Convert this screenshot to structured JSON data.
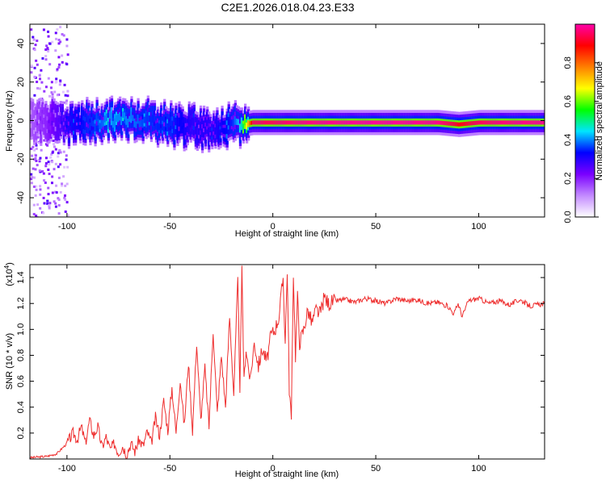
{
  "title": "C2E1.2026.018.04.23.E33",
  "chart_data": [
    {
      "type": "heatmap",
      "xlabel": "Height of straight line (km)",
      "ylabel": "Frequency (Hz)",
      "xlim": [
        -118,
        132
      ],
      "ylim": [
        -50,
        50
      ],
      "xticks": [
        -100,
        -50,
        0,
        50,
        100
      ],
      "xtick_labels": [
        "-100",
        "-50",
        "0",
        "50",
        "100"
      ],
      "yticks": [
        -40,
        -20,
        0,
        20,
        40
      ],
      "ytick_labels": [
        "-40",
        "-20",
        "0",
        "20",
        "40"
      ],
      "colorbar": {
        "label": "Normalized spectral amplitude",
        "range": [
          0,
          1
        ],
        "ticks": [
          0.0,
          0.2,
          0.4,
          0.6,
          0.8
        ],
        "tick_labels": [
          "0.0",
          "0.2",
          "0.4",
          "0.6",
          "0.8"
        ],
        "colors": [
          "#ffffff",
          "#c38aff",
          "#7a00ff",
          "#0000ff",
          "#00e5ff",
          "#00ff00",
          "#ffff00",
          "#ff7f00",
          "#ff0000",
          "#ff00aa"
        ]
      },
      "ridge": {
        "x": [
          -118,
          -110,
          -100,
          -90,
          -80,
          -70,
          -60,
          -50,
          -40,
          -30,
          -20,
          -15,
          -10,
          0,
          10,
          20,
          40,
          60,
          80,
          90,
          100,
          110,
          120,
          132
        ],
        "center_hz": [
          0,
          0,
          -2,
          -1,
          0,
          1,
          0,
          -2,
          -3,
          -4,
          -3,
          -2,
          -1,
          -1,
          -1,
          -1,
          -1,
          -1,
          -1,
          -2,
          -1,
          -1,
          -1,
          -1
        ],
        "amplitude": [
          0.15,
          0.2,
          0.3,
          0.35,
          0.4,
          0.4,
          0.35,
          0.35,
          0.3,
          0.3,
          0.35,
          0.5,
          0.95,
          0.95,
          0.97,
          0.98,
          0.99,
          0.99,
          0.98,
          0.9,
          0.95,
          0.97,
          0.98,
          0.98
        ]
      }
    },
    {
      "type": "line",
      "xlabel": "Height of straight line (km)",
      "ylabel": "SNR (10 * v/v)",
      "y_multiplier": "(x10",
      "y_multiplier_exp": "4",
      "xlim": [
        -118,
        132
      ],
      "ylim": [
        0,
        1.5
      ],
      "xticks": [
        -100,
        -50,
        0,
        50,
        100
      ],
      "xtick_labels": [
        "-100",
        "-50",
        "0",
        "50",
        "100"
      ],
      "yticks": [
        0.2,
        0.4,
        0.6,
        0.8,
        1.0,
        1.2,
        1.4
      ],
      "ytick_labels": [
        "0.2",
        "0.4",
        "0.6",
        "0.8",
        "1.0",
        "1.2",
        "1.4"
      ],
      "color": "#ee2e2e",
      "series": [
        {
          "x": [
            -118,
            -110,
            -105,
            -100,
            -97,
            -95,
            -93,
            -91,
            -89,
            -87,
            -85,
            -83,
            -81,
            -79,
            -77,
            -75,
            -73,
            -71,
            -69,
            -67,
            -65,
            -63,
            -61,
            -59,
            -57,
            -55,
            -53,
            -51,
            -49,
            -47,
            -45,
            -43,
            -41,
            -39,
            -37,
            -35,
            -33,
            -31,
            -29,
            -27,
            -25,
            -23,
            -21,
            -19,
            -17,
            -16,
            -15,
            -14,
            -13,
            -11,
            -9,
            -7,
            -5,
            -3,
            -1,
            1,
            3,
            5,
            6,
            7,
            8,
            9,
            10,
            11,
            12,
            13,
            15,
            17,
            19,
            21,
            23,
            25,
            27,
            30,
            35,
            40,
            45,
            50,
            55,
            60,
            65,
            70,
            75,
            80,
            85,
            88,
            90,
            92,
            95,
            100,
            105,
            110,
            115,
            120,
            125,
            132
          ],
          "y": [
            0.01,
            0.02,
            0.04,
            0.12,
            0.2,
            0.15,
            0.25,
            0.12,
            0.3,
            0.18,
            0.25,
            0.09,
            0.17,
            0.07,
            0.12,
            0.05,
            0.1,
            0.04,
            0.12,
            0.06,
            0.15,
            0.1,
            0.21,
            0.12,
            0.32,
            0.18,
            0.45,
            0.22,
            0.55,
            0.2,
            0.62,
            0.25,
            0.75,
            0.22,
            0.9,
            0.3,
            0.7,
            0.25,
            1.0,
            0.35,
            0.8,
            0.4,
            1.1,
            0.5,
            1.38,
            0.55,
            1.45,
            0.6,
            0.85,
            0.6,
            0.9,
            0.72,
            0.85,
            0.75,
            0.95,
            1.0,
            1.1,
            1.4,
            0.9,
            1.47,
            0.55,
            0.3,
            1.45,
            0.8,
            1.25,
            0.9,
            1.0,
            1.15,
            1.05,
            1.15,
            1.12,
            1.25,
            1.2,
            1.22,
            1.23,
            1.21,
            1.24,
            1.22,
            1.2,
            1.24,
            1.22,
            1.23,
            1.2,
            1.21,
            1.18,
            1.12,
            1.2,
            1.1,
            1.22,
            1.24,
            1.2,
            1.22,
            1.19,
            1.23,
            1.18,
            1.2
          ]
        }
      ]
    }
  ]
}
